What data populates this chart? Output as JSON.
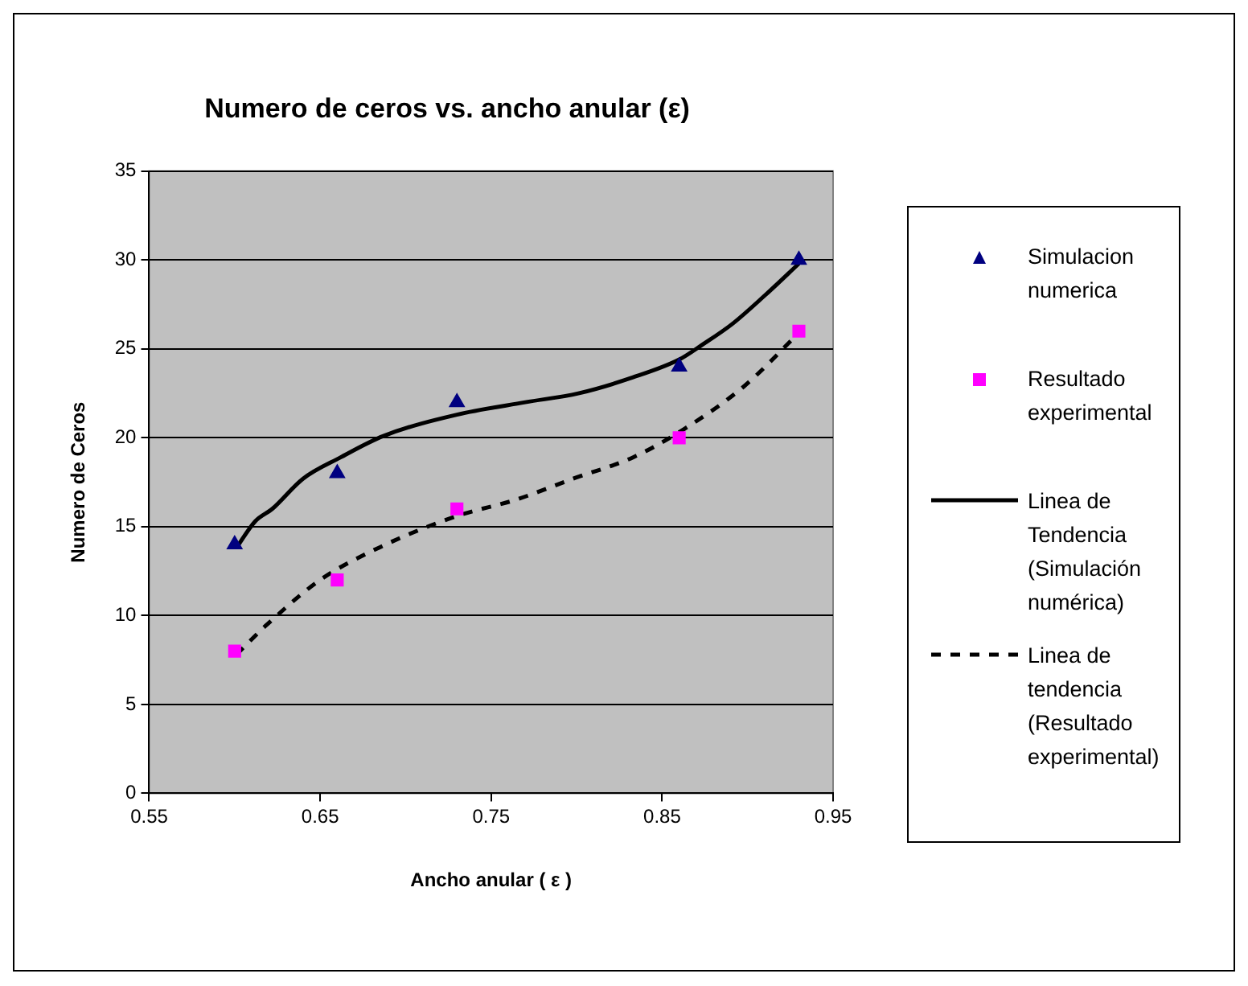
{
  "chart_data": {
    "type": "scatter",
    "title": "Numero de ceros vs. ancho anular (ε)",
    "xlabel": "Ancho anular ( ε )",
    "ylabel": "Numero de Ceros",
    "xlim": [
      0.55,
      0.95
    ],
    "xticks": [
      0.55,
      0.65,
      0.75,
      0.85,
      0.95
    ],
    "ylim": [
      0,
      35
    ],
    "yticks": [
      0,
      5,
      10,
      15,
      20,
      25,
      30,
      35
    ],
    "grid": "y",
    "legend": "right",
    "series": [
      {
        "name": "Simulacion numerica",
        "marker": "triangle",
        "color": "#000080",
        "x": [
          0.6,
          0.66,
          0.73,
          0.86,
          0.93
        ],
        "values": [
          14,
          18,
          22,
          24,
          30
        ]
      },
      {
        "name": "Resultado experimental",
        "marker": "square",
        "color": "#ff00ff",
        "x": [
          0.6,
          0.66,
          0.73,
          0.86,
          0.93
        ],
        "values": [
          8,
          12,
          16,
          20,
          26
        ]
      },
      {
        "name": "Linea de Tendencia (Simulación numérica)",
        "type": "line",
        "marker": "none",
        "line_style": "solid",
        "color": "#000000",
        "x": [
          0.601,
          0.612,
          0.622,
          0.64,
          0.662,
          0.687,
          0.73,
          0.77,
          0.801,
          0.833,
          0.86,
          0.873,
          0.891,
          0.91,
          0.93
        ],
        "values": [
          13.8,
          15.3,
          16.0,
          17.7,
          18.9,
          20.1,
          21.3,
          22.0,
          22.5,
          23.4,
          24.4,
          25.2,
          26.4,
          28.0,
          29.8
        ]
      },
      {
        "name": "Linea de tendencia (Resultado experimental)",
        "type": "line",
        "marker": "none",
        "line_style": "dashed",
        "color": "#000000",
        "x": [
          0.601,
          0.619,
          0.65,
          0.684,
          0.73,
          0.764,
          0.798,
          0.833,
          0.863,
          0.898,
          0.929
        ],
        "values": [
          7.8,
          9.5,
          12.0,
          13.8,
          15.6,
          16.5,
          17.7,
          18.9,
          20.5,
          22.9,
          25.8
        ]
      }
    ]
  }
}
